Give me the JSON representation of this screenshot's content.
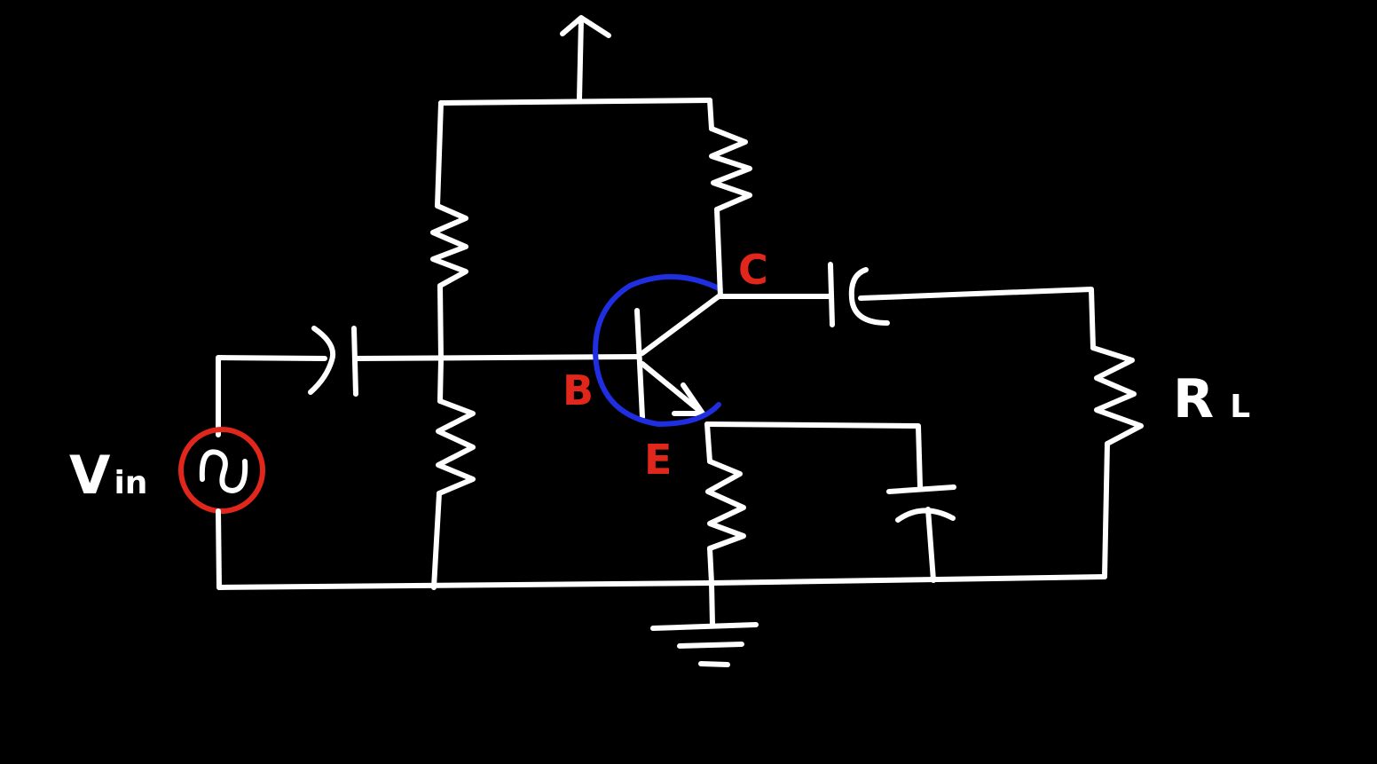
{
  "colors": {
    "background": "#000000",
    "wire": "#ffffff",
    "highlight_red": "#e1261c",
    "highlight_blue": "#1f2ee0"
  },
  "labels": {
    "vin_main": "V",
    "vin_sub": "in",
    "base": "B",
    "collector": "C",
    "emitter": "E",
    "load_main": "R",
    "load_sub": "L"
  }
}
